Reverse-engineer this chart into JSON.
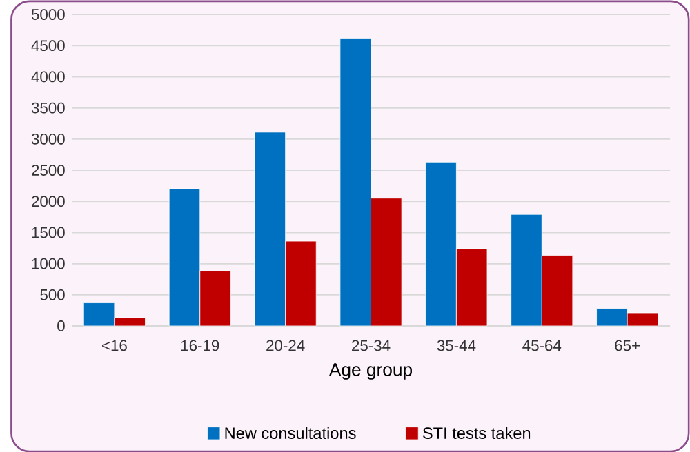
{
  "chart_data": {
    "type": "bar",
    "xlabel": "Age group",
    "categories": [
      "<16",
      "16-19",
      "20-24",
      "25-34",
      "35-44",
      "45-64",
      "65+"
    ],
    "series": [
      {
        "name": "New consultations",
        "color": "#0070c0",
        "values": [
          370,
          2200,
          3110,
          4620,
          2630,
          1790,
          280
        ]
      },
      {
        "name": "STI tests taken",
        "color": "#c00000",
        "values": [
          130,
          880,
          1360,
          2050,
          1240,
          1130,
          210
        ]
      }
    ],
    "ylim": [
      0,
      5000
    ],
    "yticks": [
      0,
      500,
      1000,
      1500,
      2000,
      2500,
      3000,
      3500,
      4000,
      4500,
      5000
    ],
    "grid": "y",
    "legend": "bottom"
  }
}
